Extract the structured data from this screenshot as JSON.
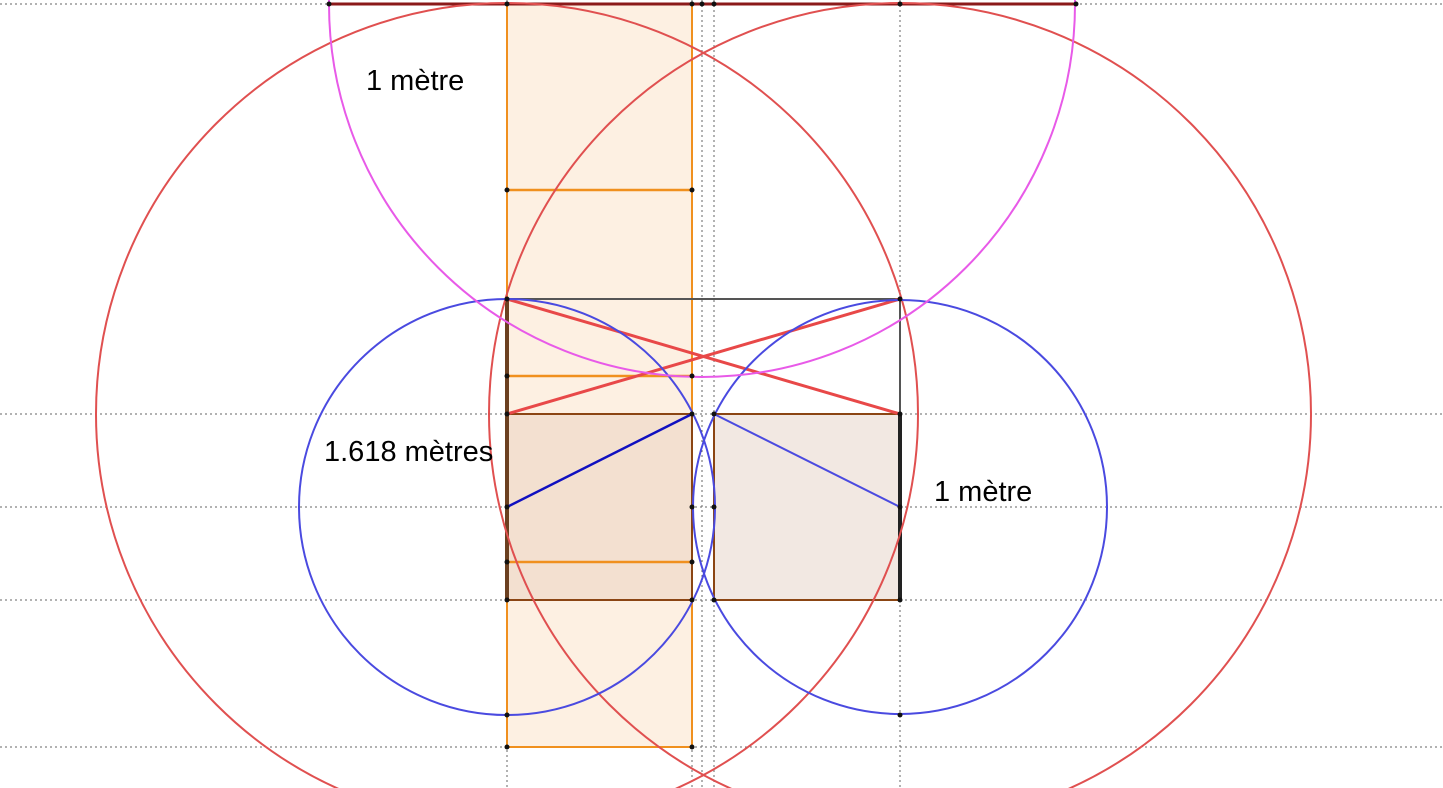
{
  "labels": {
    "top": "1 mètre",
    "left": "1.618 mètres",
    "right": "1 mètre"
  },
  "colors": {
    "red_circle": "#e05050",
    "blue_circle": "#4a4ae0",
    "magenta_circle": "#e85ae8",
    "orange": "#f0901e",
    "orange_fill": "#fdf0e2",
    "brown": "#8b4513",
    "left_square_fill": "#f3e0d0",
    "right_square_fill": "#f2e8e2",
    "dark_blue": "#1010c0",
    "top_line": "#8b1a1a"
  }
}
